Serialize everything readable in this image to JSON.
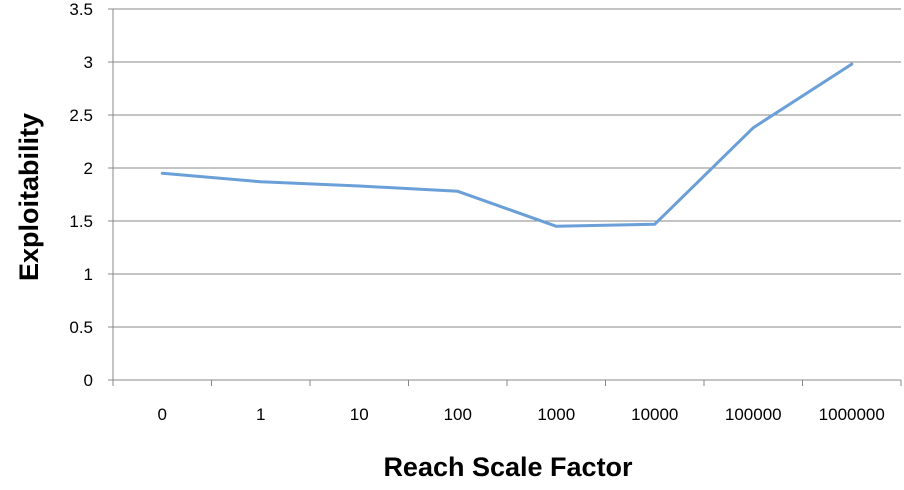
{
  "chart_data": {
    "type": "line",
    "title": "",
    "xlabel": "Reach Scale Factor",
    "ylabel": "Exploitability",
    "categories": [
      "0",
      "1",
      "10",
      "100",
      "1000",
      "10000",
      "100000",
      "1000000"
    ],
    "series": [
      {
        "values": [
          1.95,
          1.87,
          1.83,
          1.78,
          1.45,
          1.47,
          2.38,
          2.98
        ],
        "color": "#6a9fd8"
      }
    ],
    "ylim": [
      0,
      3.5
    ],
    "yticks": [
      "0",
      "0.5",
      "1",
      "1.5",
      "2",
      "2.5",
      "3",
      "3.5"
    ],
    "grid": true,
    "legend": "none"
  },
  "colors": {
    "line": "#6a9fd8",
    "grid": "#888888",
    "axis": "#888888"
  }
}
